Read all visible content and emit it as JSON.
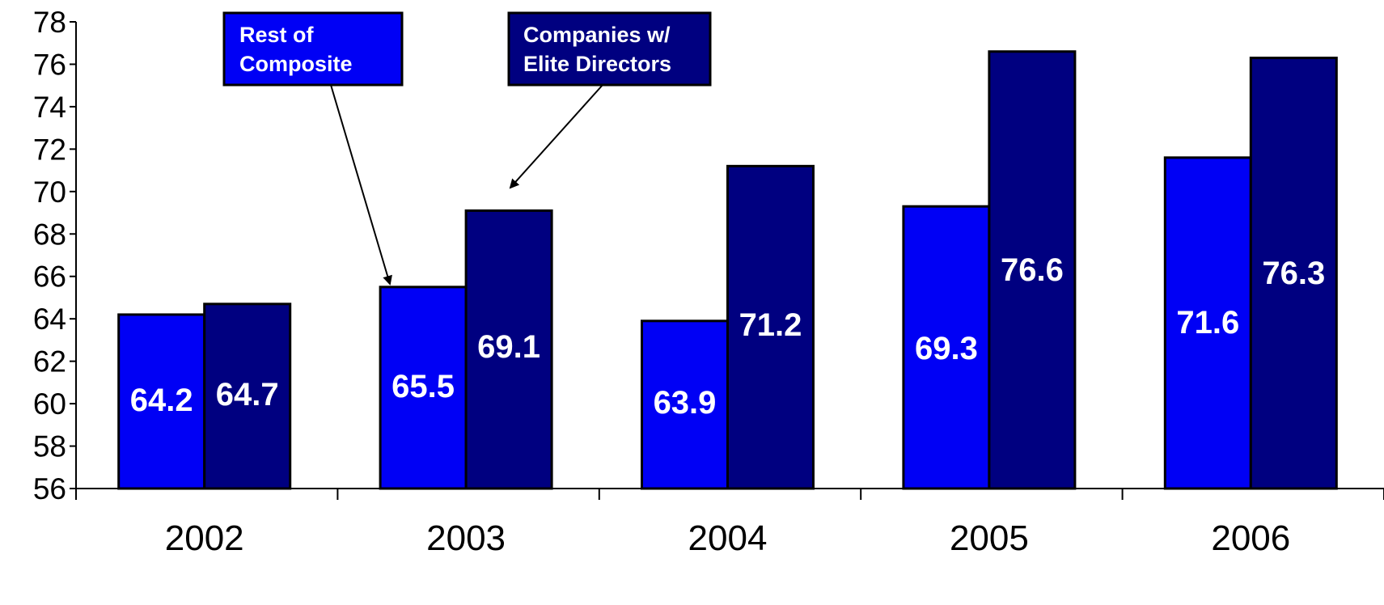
{
  "chart_data": {
    "type": "bar",
    "categories": [
      "2002",
      "2003",
      "2004",
      "2005",
      "2006"
    ],
    "series": [
      {
        "name": "Rest of Composite",
        "color": "#0000f5",
        "values": [
          64.2,
          65.5,
          63.9,
          69.3,
          71.6
        ],
        "labels": [
          "64.2",
          "65.5",
          "63.9",
          "69.3",
          "71.6"
        ]
      },
      {
        "name": "Companies w/ Elite Directors",
        "color": "#000080",
        "values": [
          64.7,
          69.1,
          71.2,
          76.6,
          76.3
        ],
        "labels": [
          "64.7",
          "69.1",
          "71.2",
          "76.6",
          "76.3"
        ]
      }
    ],
    "ylim": [
      56,
      78
    ],
    "yticks": [
      "56",
      "58",
      "60",
      "62",
      "64",
      "66",
      "68",
      "70",
      "72",
      "74",
      "76",
      "78"
    ],
    "grid": false,
    "callouts": [
      {
        "lines": [
          "Rest of",
          "Composite"
        ],
        "series": "Rest of Composite",
        "points_to": "2003"
      },
      {
        "lines": [
          "Companies w/",
          "Elite Directors"
        ],
        "series": "Companies w/ Elite Directors",
        "points_to": "2003"
      }
    ]
  }
}
